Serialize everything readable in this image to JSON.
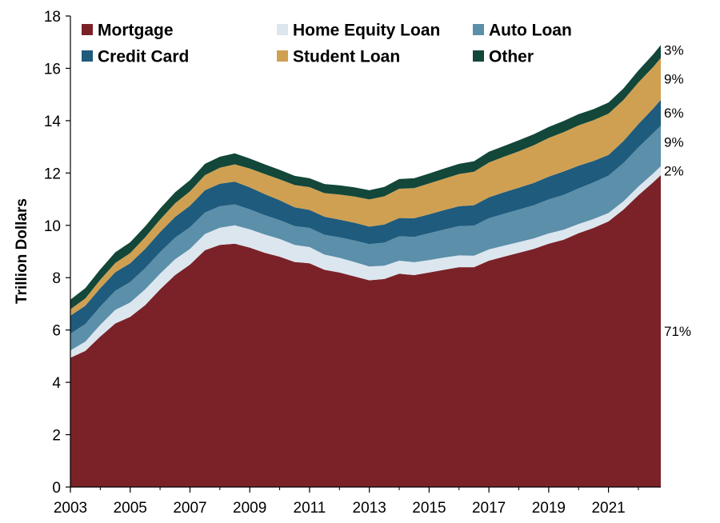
{
  "chart_data": {
    "type": "area",
    "stacked": true,
    "title": "",
    "xlabel": "",
    "ylabel": "Trillion Dollars",
    "ylim": [
      0,
      18
    ],
    "xlim": [
      2003,
      2022.75
    ],
    "y_ticks": [
      0,
      2,
      4,
      6,
      8,
      10,
      12,
      14,
      16,
      18
    ],
    "x_ticks": [
      2003,
      2005,
      2007,
      2009,
      2011,
      2013,
      2015,
      2017,
      2019,
      2021
    ],
    "grid": false,
    "legend_position": "top",
    "x": [
      2003,
      2003.5,
      2004,
      2004.5,
      2005,
      2005.5,
      2006,
      2006.5,
      2007,
      2007.5,
      2008,
      2008.5,
      2009,
      2009.5,
      2010,
      2010.5,
      2011,
      2011.5,
      2012,
      2012.5,
      2013,
      2013.5,
      2014,
      2014.5,
      2015,
      2015.5,
      2016,
      2016.5,
      2017,
      2017.5,
      2018,
      2018.5,
      2019,
      2019.5,
      2020,
      2020.5,
      2021,
      2021.5,
      2022,
      2022.5,
      2022.75
    ],
    "series": [
      {
        "name": "Mortgage",
        "color": "#7b2229",
        "share_label": "71%",
        "values": [
          4.94,
          5.2,
          5.75,
          6.25,
          6.5,
          6.95,
          7.55,
          8.1,
          8.5,
          9.05,
          9.25,
          9.3,
          9.15,
          8.95,
          8.8,
          8.6,
          8.55,
          8.3,
          8.2,
          8.05,
          7.9,
          7.95,
          8.15,
          8.1,
          8.2,
          8.3,
          8.4,
          8.4,
          8.65,
          8.8,
          8.95,
          9.1,
          9.3,
          9.45,
          9.7,
          9.9,
          10.15,
          10.6,
          11.15,
          11.65,
          11.92
        ]
      },
      {
        "name": "Home Equity Loan",
        "color": "#dce6ee",
        "share_label": "2%",
        "values": [
          0.28,
          0.36,
          0.45,
          0.52,
          0.55,
          0.6,
          0.6,
          0.6,
          0.6,
          0.62,
          0.66,
          0.7,
          0.7,
          0.7,
          0.68,
          0.65,
          0.62,
          0.58,
          0.56,
          0.55,
          0.53,
          0.51,
          0.5,
          0.49,
          0.47,
          0.47,
          0.45,
          0.44,
          0.43,
          0.42,
          0.41,
          0.4,
          0.39,
          0.38,
          0.35,
          0.34,
          0.32,
          0.32,
          0.33,
          0.34,
          0.34
        ]
      },
      {
        "name": "Auto Loan",
        "color": "#5b8faa",
        "share_label": "9%",
        "values": [
          0.64,
          0.67,
          0.7,
          0.73,
          0.78,
          0.81,
          0.83,
          0.83,
          0.83,
          0.82,
          0.82,
          0.8,
          0.76,
          0.74,
          0.72,
          0.72,
          0.73,
          0.76,
          0.78,
          0.82,
          0.85,
          0.88,
          0.93,
          0.97,
          1.03,
          1.07,
          1.12,
          1.15,
          1.19,
          1.22,
          1.24,
          1.27,
          1.3,
          1.33,
          1.36,
          1.4,
          1.43,
          1.46,
          1.5,
          1.54,
          1.55
        ]
      },
      {
        "name": "Credit Card",
        "color": "#1f5b7d",
        "share_label": "6%",
        "values": [
          0.69,
          0.7,
          0.7,
          0.71,
          0.72,
          0.74,
          0.76,
          0.79,
          0.82,
          0.85,
          0.86,
          0.87,
          0.84,
          0.8,
          0.76,
          0.72,
          0.69,
          0.69,
          0.68,
          0.68,
          0.67,
          0.69,
          0.7,
          0.71,
          0.72,
          0.74,
          0.76,
          0.78,
          0.8,
          0.82,
          0.84,
          0.85,
          0.87,
          0.9,
          0.87,
          0.82,
          0.79,
          0.84,
          0.89,
          0.94,
          0.99
        ]
      },
      {
        "name": "Student Loan",
        "color": "#cfa052",
        "share_label": "9%",
        "values": [
          0.24,
          0.28,
          0.32,
          0.35,
          0.39,
          0.44,
          0.48,
          0.52,
          0.55,
          0.58,
          0.61,
          0.66,
          0.72,
          0.77,
          0.8,
          0.85,
          0.87,
          0.9,
          0.96,
          1.0,
          1.04,
          1.08,
          1.12,
          1.15,
          1.18,
          1.2,
          1.23,
          1.28,
          1.33,
          1.36,
          1.39,
          1.44,
          1.48,
          1.5,
          1.54,
          1.56,
          1.58,
          1.57,
          1.59,
          1.59,
          1.6
        ]
      },
      {
        "name": "Other",
        "color": "#12473a",
        "share_label": "3%",
        "values": [
          0.37,
          0.39,
          0.4,
          0.41,
          0.41,
          0.42,
          0.42,
          0.42,
          0.43,
          0.43,
          0.42,
          0.42,
          0.38,
          0.37,
          0.36,
          0.35,
          0.34,
          0.35,
          0.35,
          0.35,
          0.35,
          0.36,
          0.37,
          0.38,
          0.38,
          0.39,
          0.39,
          0.4,
          0.41,
          0.41,
          0.42,
          0.42,
          0.42,
          0.43,
          0.43,
          0.42,
          0.42,
          0.44,
          0.46,
          0.48,
          0.49
        ]
      }
    ]
  }
}
